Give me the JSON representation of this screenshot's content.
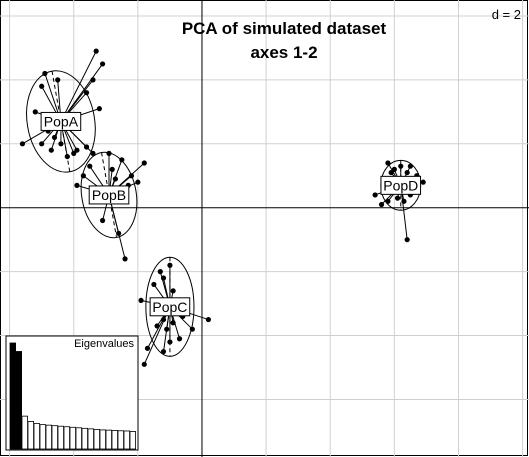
{
  "chart_data": {
    "type": "scatter",
    "title": "PCA of simulated dataset",
    "subtitle": "axes 1-2",
    "scale_label": "d = 2",
    "xlim": [
      -6.3,
      10.2
    ],
    "ylim": [
      -7.8,
      6.5
    ],
    "grid_step": 2,
    "axes_origin": [
      0,
      0
    ],
    "groups": [
      {
        "name": "PopA",
        "centroid": [
          -4.4,
          2.7
        ],
        "ellipse": {
          "rx": 1.05,
          "ry": 1.6,
          "angle": -10
        },
        "points": [
          [
            -4.9,
            4.2
          ],
          [
            -5.0,
            3.8
          ],
          [
            -4.5,
            4.0
          ],
          [
            -3.3,
            4.9
          ],
          [
            -3.1,
            4.5
          ],
          [
            -3.4,
            4.0
          ],
          [
            -3.6,
            3.6
          ],
          [
            -5.2,
            3.0
          ],
          [
            -3.2,
            3.1
          ],
          [
            -4.8,
            2.4
          ],
          [
            -4.6,
            2.2
          ],
          [
            -4.4,
            2.0
          ],
          [
            -5.0,
            2.0
          ],
          [
            -4.7,
            1.8
          ],
          [
            -3.9,
            1.8
          ],
          [
            -3.6,
            1.9
          ],
          [
            -4.2,
            1.6
          ],
          [
            -4.0,
            1.7
          ],
          [
            -5.6,
            2.0
          ],
          [
            -3.4,
            1.7
          ]
        ]
      },
      {
        "name": "PopB",
        "centroid": [
          -2.9,
          0.4
        ],
        "ellipse": {
          "rx": 0.85,
          "ry": 1.35,
          "angle": -10
        },
        "points": [
          [
            -2.5,
            1.5
          ],
          [
            -1.8,
            1.4
          ],
          [
            -2.9,
            1.7
          ],
          [
            -3.5,
            1.3
          ],
          [
            -3.7,
            1.0
          ],
          [
            -2.2,
            1.0
          ],
          [
            -2.8,
            1.2
          ],
          [
            -2.7,
            0.9
          ],
          [
            -2.3,
            0.7
          ],
          [
            -2.0,
            0.8
          ],
          [
            -3.3,
            0.6
          ],
          [
            -3.9,
            0.7
          ],
          [
            -2.6,
            -0.8
          ],
          [
            -2.4,
            -1.6
          ],
          [
            -3.1,
            -0.4
          ]
        ]
      },
      {
        "name": "PopC",
        "centroid": [
          -1.0,
          -3.1
        ],
        "ellipse": {
          "rx": 0.75,
          "ry": 1.55,
          "angle": 0
        },
        "points": [
          [
            -1.3,
            -2.0
          ],
          [
            -1.0,
            -1.8
          ],
          [
            -1.2,
            -2.2
          ],
          [
            -1.5,
            -2.4
          ],
          [
            -0.9,
            -2.6
          ],
          [
            -1.9,
            -2.9
          ],
          [
            -0.5,
            -3.2
          ],
          [
            -1.2,
            -3.5
          ],
          [
            0.2,
            -3.5
          ],
          [
            -1.4,
            -3.7
          ],
          [
            -1.1,
            -3.8
          ],
          [
            -0.9,
            -3.6
          ],
          [
            -0.7,
            -4.1
          ],
          [
            -1.2,
            -4.5
          ],
          [
            -1.7,
            -4.4
          ],
          [
            -1.0,
            -4.2
          ],
          [
            -1.8,
            -4.9
          ],
          [
            -0.6,
            -3.4
          ],
          [
            -0.3,
            -3.8
          ],
          [
            -1.5,
            -3.3
          ]
        ]
      },
      {
        "name": "PopD",
        "centroid": [
          6.2,
          0.7
        ],
        "ellipse": {
          "rx": 0.62,
          "ry": 0.78,
          "angle": 0
        },
        "points": [
          [
            5.8,
            1.4
          ],
          [
            6.2,
            1.3
          ],
          [
            6.0,
            1.2
          ],
          [
            6.5,
            1.3
          ],
          [
            5.9,
            1.1
          ],
          [
            6.4,
            1.1
          ],
          [
            6.7,
            1.0
          ],
          [
            6.0,
            0.9
          ],
          [
            5.7,
            0.7
          ],
          [
            6.9,
            0.8
          ],
          [
            5.4,
            0.4
          ],
          [
            6.1,
            0.3
          ],
          [
            6.5,
            0.4
          ],
          [
            5.6,
            0.1
          ],
          [
            6.3,
            0.2
          ],
          [
            5.8,
            0.2
          ],
          [
            6.4,
            -1.0
          ]
        ]
      }
    ],
    "eigenvalues": {
      "label": "Eigenvalues",
      "values": [
        10.0,
        9.2,
        3.1,
        2.6,
        2.4,
        2.3,
        2.25,
        2.2,
        2.15,
        2.1,
        2.05,
        2.0,
        1.95,
        1.9,
        1.85,
        1.8,
        1.78,
        1.75,
        1.72,
        1.7,
        1.65
      ],
      "highlighted": 2
    }
  }
}
